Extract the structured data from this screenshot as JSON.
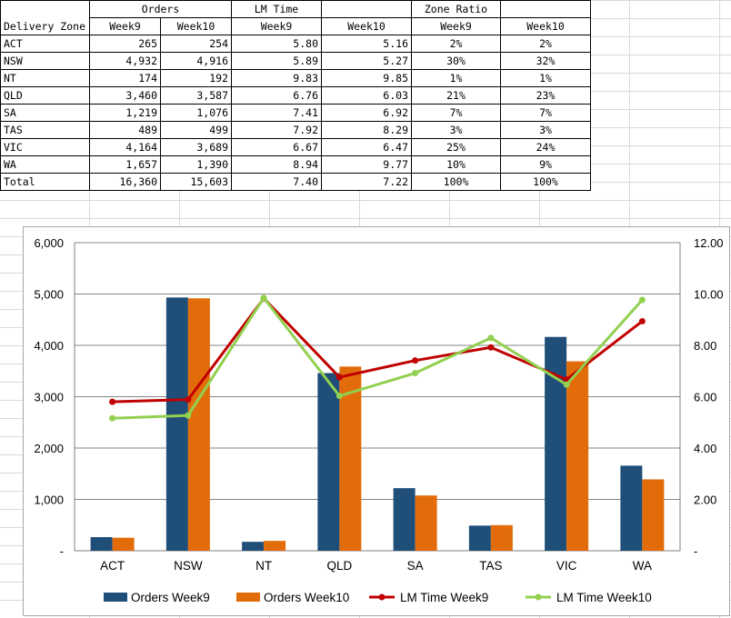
{
  "table": {
    "header_groups": [
      "Orders",
      "LM Time",
      "Zone Ratio"
    ],
    "zone_header": "Delivery Zone",
    "week_headers": [
      "Week9",
      "Week10",
      "Week9",
      "Week10",
      "Week9",
      "Week10"
    ],
    "rows": [
      [
        "ACT",
        "265",
        "254",
        "5.80",
        "5.16",
        "2%",
        "2%"
      ],
      [
        "NSW",
        "4,932",
        "4,916",
        "5.89",
        "5.27",
        "30%",
        "32%"
      ],
      [
        "NT",
        "174",
        "192",
        "9.83",
        "9.85",
        "1%",
        "1%"
      ],
      [
        "QLD",
        "3,460",
        "3,587",
        "6.76",
        "6.03",
        "21%",
        "23%"
      ],
      [
        "SA",
        "1,219",
        "1,076",
        "7.41",
        "6.92",
        "7%",
        "7%"
      ],
      [
        "TAS",
        "489",
        "499",
        "7.92",
        "8.29",
        "3%",
        "3%"
      ],
      [
        "VIC",
        "4,164",
        "3,689",
        "6.67",
        "6.47",
        "25%",
        "24%"
      ],
      [
        "WA",
        "1,657",
        "1,390",
        "8.94",
        "9.77",
        "10%",
        "9%"
      ],
      [
        "Total",
        "16,360",
        "15,603",
        "7.40",
        "7.22",
        "100%",
        "100%"
      ]
    ]
  },
  "chart_data": {
    "type": "bar",
    "categories": [
      "ACT",
      "NSW",
      "NT",
      "QLD",
      "SA",
      "TAS",
      "VIC",
      "WA"
    ],
    "bar_series": [
      {
        "name": "Orders Week9",
        "color": "#1f4e79",
        "values": [
          265,
          4932,
          174,
          3460,
          1219,
          489,
          4164,
          1657
        ]
      },
      {
        "name": "Orders Week10",
        "color": "#e36c0a",
        "values": [
          254,
          4916,
          192,
          3587,
          1076,
          499,
          3689,
          1390
        ]
      }
    ],
    "line_series": [
      {
        "name": "LM Time  Week9",
        "color": "#c00000",
        "values": [
          5.8,
          5.89,
          9.83,
          6.76,
          7.41,
          7.92,
          6.67,
          8.94
        ]
      },
      {
        "name": "LM Time  Week10",
        "color": "#92d050",
        "values": [
          5.16,
          5.27,
          9.85,
          6.03,
          6.92,
          8.29,
          6.47,
          9.77
        ]
      }
    ],
    "y_left": {
      "min": 0,
      "max": 6000,
      "ticks": [
        "-",
        "1,000",
        "2,000",
        "3,000",
        "4,000",
        "5,000",
        "6,000"
      ]
    },
    "y_right": {
      "min": 0,
      "max": 12,
      "ticks": [
        "-",
        "2.00",
        "4.00",
        "6.00",
        "8.00",
        "10.00",
        "12.00"
      ]
    },
    "legend_position": "bottom",
    "grid": true
  }
}
